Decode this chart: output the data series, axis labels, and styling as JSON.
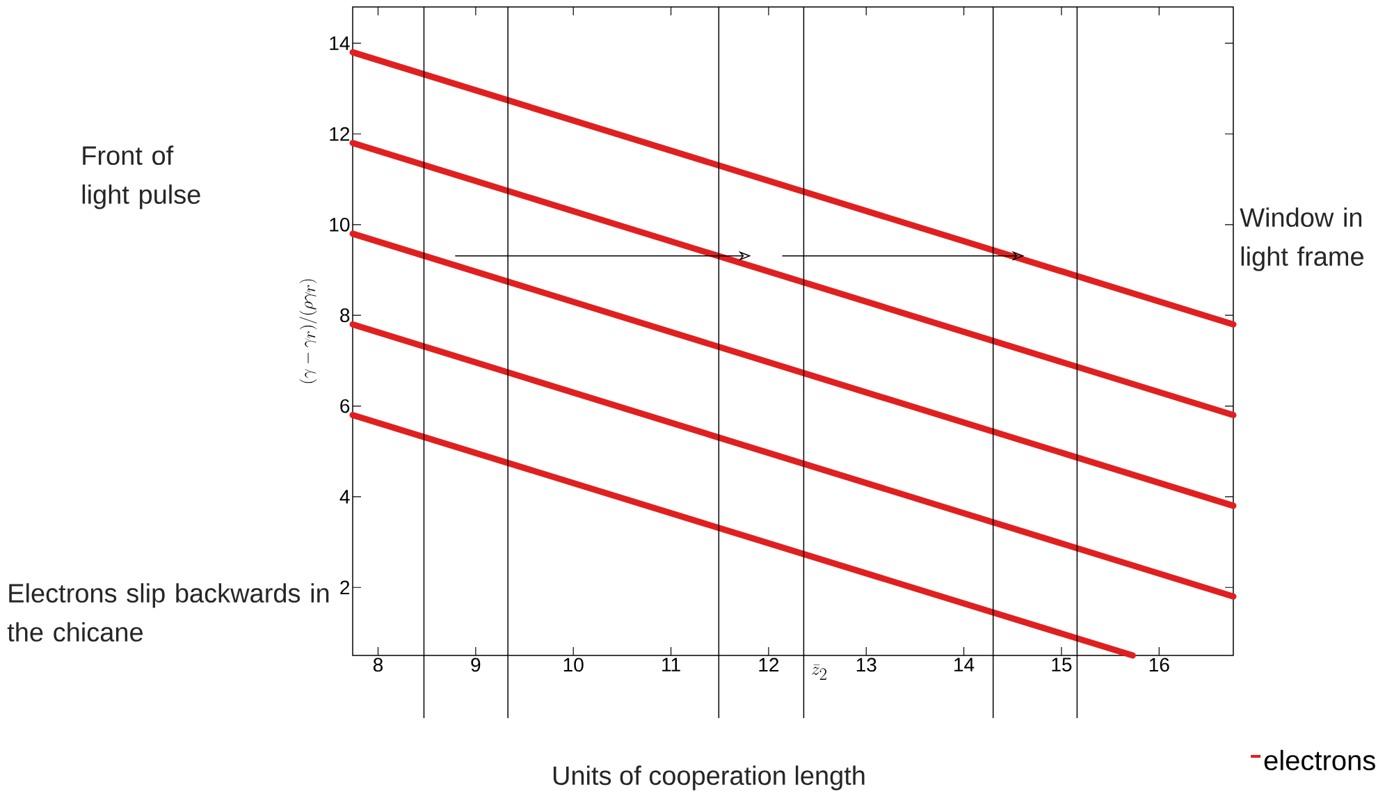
{
  "chart_data": {
    "type": "line",
    "xlabel": "\\bar{z}_2",
    "ylabel": "(\\gamma-\\gamma_r)/(\\rho\\gamma_r)",
    "annotations": [
      "Front of light pulse",
      "Window in light frame",
      "Electrons slip backwards in the chicane",
      "Units of cooperation length"
    ],
    "series": [
      {
        "name": "electrons",
        "color": "#e02020",
        "x": [
          7.74,
          16.76
        ],
        "values": [
          13.8,
          7.8
        ]
      },
      {
        "color": "#e02020",
        "x": [
          7.74,
          16.76
        ],
        "values": [
          11.8,
          5.8
        ]
      },
      {
        "color": "#e02020",
        "x": [
          7.74,
          16.76
        ],
        "values": [
          9.8,
          3.8
        ]
      },
      {
        "color": "#e02020",
        "x": [
          7.74,
          16.76
        ],
        "values": [
          7.8,
          1.8
        ]
      },
      {
        "color": "#e02020",
        "x": [
          7.74,
          15.73
        ],
        "values": [
          5.8,
          0.5
        ]
      }
    ],
    "xlim": [
      7.74,
      16.76
    ],
    "ylim": [
      0.5,
      14.8
    ],
    "xticks": [
      8,
      9,
      10,
      11,
      12,
      13,
      14,
      15,
      16
    ],
    "yticks": [
      2,
      4,
      6,
      8,
      10,
      12,
      14
    ],
    "ref_lines": [
      {
        "axis": "x",
        "value": 8.47
      },
      {
        "axis": "x",
        "value": 9.33
      },
      {
        "axis": "x",
        "value": 11.49
      },
      {
        "axis": "x",
        "value": 12.36
      },
      {
        "axis": "x",
        "value": 14.3
      },
      {
        "axis": "x",
        "value": 15.16
      }
    ],
    "legend": "bottom right",
    "grid": false,
    "marker": "none",
    "line_style": "solid"
  }
}
